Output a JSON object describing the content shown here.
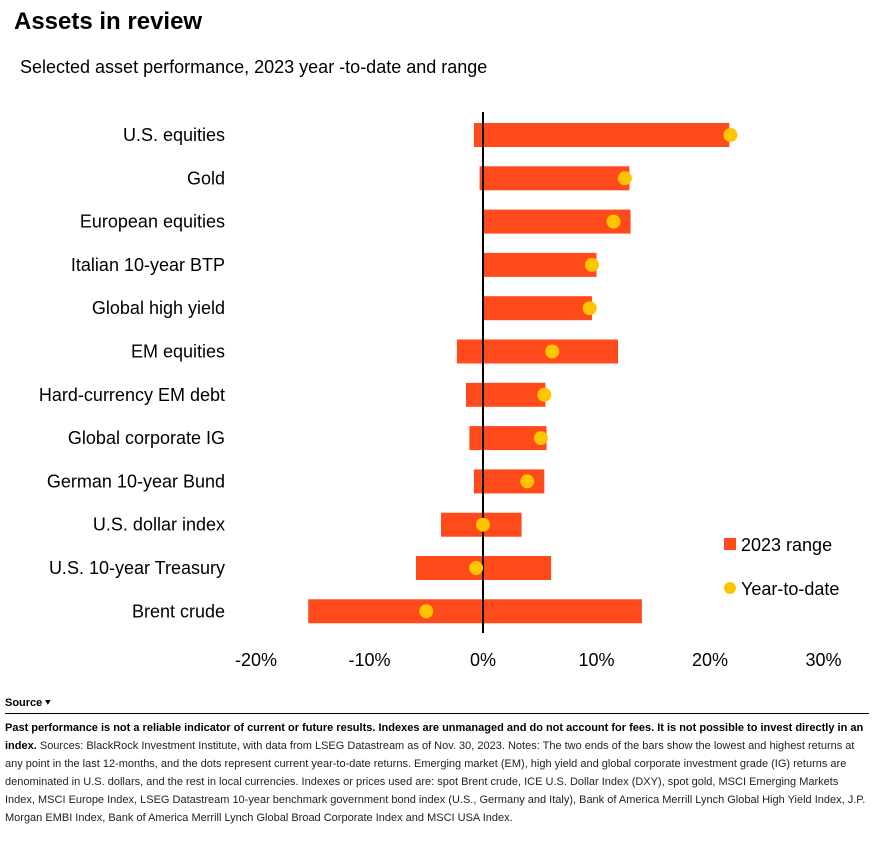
{
  "header": {
    "title": "Assets in review",
    "subtitle": "Selected asset performance, 2023 year -to-date and range"
  },
  "chart_data": {
    "type": "bar",
    "subtype": "range-with-dots",
    "categories": [
      "U.S. equities",
      "Gold",
      "European equities",
      "Italian 10-year BTP",
      "Global high yield",
      "EM equities",
      "Hard-currency EM debt",
      "Global corporate IG",
      "German 10-year Bund",
      "U.S. dollar index",
      "U.S. 10-year Treasury",
      "Brent crude"
    ],
    "series": [
      {
        "name": "2023 range",
        "color": "#FF4A1C",
        "ranges": [
          [
            -0.8,
            21.7
          ],
          [
            -0.3,
            12.9
          ],
          [
            0.0,
            13.0
          ],
          [
            0.0,
            10.0
          ],
          [
            0.0,
            9.6
          ],
          [
            -2.3,
            11.9
          ],
          [
            -1.5,
            5.5
          ],
          [
            -1.2,
            5.6
          ],
          [
            -0.8,
            5.4
          ],
          [
            -3.7,
            3.4
          ],
          [
            -5.9,
            6.0
          ],
          [
            -15.4,
            14.0
          ]
        ]
      },
      {
        "name": "Year-to-date",
        "color": "#FFC400",
        "values": [
          21.8,
          12.5,
          11.5,
          9.6,
          9.4,
          6.1,
          5.4,
          5.1,
          3.9,
          0.0,
          -0.6,
          -5.0
        ]
      }
    ],
    "xlim": [
      -20,
      30
    ],
    "xticks": [
      "-20%",
      "-10%",
      "0%",
      "10%",
      "20%",
      "30%"
    ],
    "xtick_values": [
      -20,
      -10,
      0,
      10,
      20,
      30
    ],
    "legend_position": "bottom-right",
    "grid": false
  },
  "footer": {
    "source_label": "Source",
    "disclaimer": "Past performance is not a reliable indicator of current or future results. Indexes are unmanaged and do not account for fees. It is not possible to invest directly in an index.",
    "notes": " Sources: BlackRock Investment Institute, with data from LSEG Datastream as of Nov. 30, 2023. Notes: The two ends of the bars show the lowest and highest returns at any point in the last 12-months, and the dots represent current year-to-date returns. Emerging market (EM), high yield and global corporate investment grade (IG) returns are denominated in U.S. dollars, and the rest in local currencies. Indexes or prices used are: spot Brent crude, ICE U.S. Dollar Index (DXY), spot gold, MSCI Emerging Markets Index, MSCI Europe Index, LSEG Datastream 10-year benchmark government bond index (U.S., Germany and Italy), Bank of America Merrill Lynch Global High Yield Index, J.P. Morgan EMBI Index, Bank of America Merrill Lynch Global Broad Corporate Index and MSCI USA Index."
  }
}
